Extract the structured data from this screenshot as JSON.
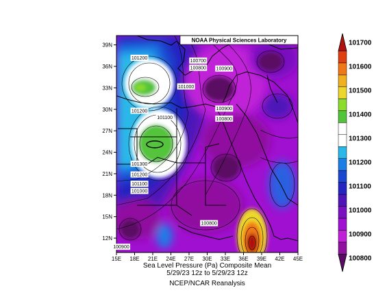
{
  "credit": "NOAA Physical Sciences Laboratory",
  "caption": {
    "line1": "Sea Level Pressure (Pa)   Composite Mean",
    "line2": "5/29/23 12z  to 5/29/23 12z",
    "line3": "NCEP/NCAR Reanalysis"
  },
  "map": {
    "lon_ticks": [
      "15E",
      "18E",
      "21E",
      "24E",
      "27E",
      "30E",
      "33E",
      "36E",
      "39E",
      "42E",
      "45E"
    ],
    "lat_ticks": [
      "39N",
      "36N",
      "33N",
      "30N",
      "27N",
      "24N",
      "21N",
      "18N",
      "15N",
      "12N"
    ],
    "contour_labels": [
      {
        "text": "101200",
        "lon": 18.8,
        "lat": 37.2
      },
      {
        "text": "100700",
        "lon": 28.5,
        "lat": 36.8
      },
      {
        "text": "100800",
        "lon": 28.5,
        "lat": 35.8
      },
      {
        "text": "100900",
        "lon": 32.8,
        "lat": 35.7
      },
      {
        "text": "101000",
        "lon": 26.5,
        "lat": 33.2
      },
      {
        "text": "101200",
        "lon": 18.8,
        "lat": 29.8
      },
      {
        "text": "101100",
        "lon": 23.0,
        "lat": 28.9
      },
      {
        "text": "100900",
        "lon": 32.8,
        "lat": 30.1
      },
      {
        "text": "100800",
        "lon": 32.8,
        "lat": 28.7
      },
      {
        "text": "101300",
        "lon": 18.8,
        "lat": 22.4
      },
      {
        "text": "101200",
        "lon": 18.8,
        "lat": 20.9
      },
      {
        "text": "101100",
        "lon": 18.8,
        "lat": 19.6
      },
      {
        "text": "101000",
        "lon": 18.8,
        "lat": 18.6
      },
      {
        "text": "100800",
        "lon": 30.3,
        "lat": 14.1
      },
      {
        "text": "100900",
        "lon": 15.8,
        "lat": 10.8
      }
    ]
  },
  "colorbar": {
    "labels": [
      "101700",
      "101600",
      "101500",
      "101400",
      "101300",
      "101200",
      "101100",
      "101000",
      "100900",
      "100800"
    ],
    "colors": [
      "#b01010",
      "#e04010",
      "#f07818",
      "#f0b020",
      "#ecd82c",
      "#8cdc2c",
      "#52c43a",
      "#ffffff",
      "#ffffff",
      "#2ab8e8",
      "#1a7ee6",
      "#1a46d0",
      "#2424c0",
      "#4e14b8",
      "#7a10c0",
      "#a010d0",
      "#c020d8",
      "#9010a0",
      "#5a0a62"
    ]
  }
}
